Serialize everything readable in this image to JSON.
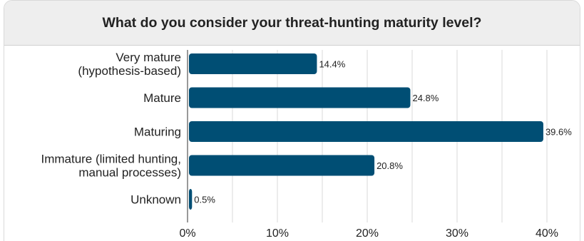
{
  "title": "What do you consider your threat-hunting maturity level?",
  "colors": {
    "bar": "#004e74",
    "grid": "#d9d9d9",
    "header_bg": "#eeeeee"
  },
  "chart_data": {
    "type": "bar",
    "orientation": "horizontal",
    "title": "What do you consider your threat-hunting maturity level?",
    "categories": [
      [
        "Very mature",
        "(hypothesis-based)"
      ],
      [
        "Mature"
      ],
      [
        "Maturing"
      ],
      [
        "Immature (limited hunting,",
        "manual processes)"
      ],
      [
        "Unknown"
      ]
    ],
    "values": [
      14.4,
      24.8,
      39.6,
      20.8,
      0.5
    ],
    "value_labels": [
      "14.4%",
      "24.8%",
      "39.6%",
      "20.8%",
      "0.5%"
    ],
    "xlim": [
      0,
      40
    ],
    "xticks": [
      0,
      10,
      20,
      30,
      40
    ],
    "xtick_labels": [
      "0%",
      "10%",
      "20%",
      "30%",
      "40%"
    ],
    "grid": true,
    "xlabel": "",
    "ylabel": ""
  }
}
